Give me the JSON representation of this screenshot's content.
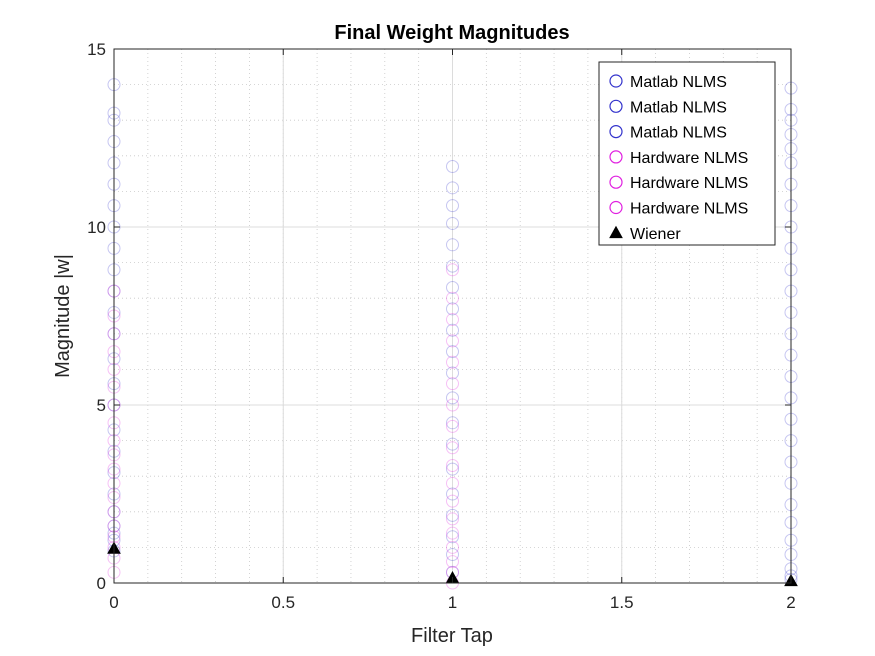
{
  "chart_data": {
    "type": "scatter",
    "title": "Final Weight Magnitudes",
    "xlabel": "Filter Tap",
    "ylabel": "Magnitude |w|",
    "xlim": [
      0,
      2
    ],
    "ylim": [
      0,
      15
    ],
    "x_ticks": [
      "0",
      "0.5",
      "1",
      "1.5",
      "2"
    ],
    "y_ticks": [
      "0",
      "5",
      "10",
      "15"
    ],
    "x_tick_values": [
      0,
      0.5,
      1,
      1.5,
      2
    ],
    "y_tick_values": [
      0,
      5,
      10,
      15
    ],
    "grid": true,
    "minor_grid": true,
    "legend_position": "top-right",
    "series": [
      {
        "name": "Matlab NLMS",
        "marker": "circle-open",
        "color": "#3333cc",
        "x": [
          0,
          0,
          0,
          0,
          0,
          0,
          0,
          0,
          0,
          0,
          0,
          0,
          0,
          0,
          0,
          0,
          0,
          0,
          0,
          0,
          0,
          0,
          0,
          0,
          0,
          1,
          1,
          1,
          1,
          1,
          1,
          1,
          1,
          1,
          1,
          1,
          1,
          1,
          1,
          1,
          1,
          1,
          1,
          1,
          1,
          2,
          2,
          2,
          2,
          2,
          2,
          2,
          2,
          2,
          2,
          2,
          2,
          2,
          2,
          2,
          2,
          2,
          2,
          2,
          2,
          2,
          2,
          2,
          2,
          2,
          2,
          2,
          2
        ],
        "y": [
          0.9,
          1.2,
          1.6,
          2.0,
          2.5,
          3.1,
          3.7,
          4.3,
          5.0,
          5.6,
          6.3,
          7.0,
          7.6,
          8.2,
          8.8,
          9.4,
          10.0,
          10.6,
          11.2,
          11.8,
          12.4,
          13.0,
          13.2,
          14.0,
          1.4,
          0.3,
          0.8,
          1.3,
          1.9,
          2.5,
          3.2,
          3.9,
          4.5,
          5.2,
          5.9,
          6.5,
          7.1,
          7.7,
          8.3,
          8.9,
          9.5,
          10.1,
          10.6,
          11.1,
          11.7,
          0.1,
          0.4,
          0.8,
          1.2,
          1.7,
          2.2,
          2.8,
          3.4,
          4.0,
          4.6,
          5.2,
          5.8,
          6.4,
          7.0,
          7.6,
          8.2,
          8.8,
          9.4,
          10.0,
          10.6,
          11.2,
          11.8,
          12.2,
          12.6,
          13.0,
          13.3,
          13.9,
          0.2
        ]
      },
      {
        "name": "Matlab NLMS",
        "marker": "circle-open",
        "color": "#3333cc",
        "x": [],
        "y": []
      },
      {
        "name": "Matlab NLMS",
        "marker": "circle-open",
        "color": "#3333cc",
        "x": [],
        "y": []
      },
      {
        "name": "Hardware NLMS",
        "marker": "circle-open",
        "color": "#e020e0",
        "x": [
          0,
          0,
          0,
          0,
          0,
          0,
          0,
          0,
          0,
          0,
          0,
          0,
          0,
          0,
          0,
          0,
          0,
          0,
          0,
          1,
          1,
          1,
          1,
          1,
          1,
          1,
          1,
          1,
          1,
          1,
          1,
          1,
          1,
          1,
          1,
          1,
          1
        ],
        "y": [
          0.3,
          0.7,
          1.0,
          1.3,
          1.6,
          2.0,
          2.4,
          2.8,
          3.2,
          3.6,
          4.0,
          4.5,
          5.0,
          5.5,
          6.0,
          6.5,
          7.0,
          7.5,
          8.2,
          0.0,
          0.3,
          0.6,
          1.0,
          1.4,
          1.8,
          2.3,
          2.8,
          3.3,
          3.8,
          4.4,
          5.0,
          5.6,
          6.2,
          6.8,
          7.4,
          8.0,
          8.8
        ]
      },
      {
        "name": "Hardware NLMS",
        "marker": "circle-open",
        "color": "#e020e0",
        "x": [],
        "y": []
      },
      {
        "name": "Hardware NLMS",
        "marker": "circle-open",
        "color": "#e020e0",
        "x": [],
        "y": []
      },
      {
        "name": "Wiener",
        "marker": "triangle-filled",
        "color": "#000000",
        "x": [
          0,
          1,
          2
        ],
        "y": [
          0.97,
          0.14,
          0.06
        ]
      }
    ]
  }
}
